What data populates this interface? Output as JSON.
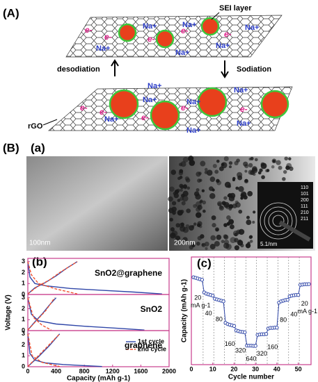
{
  "panel_labels": {
    "A": "(A)",
    "B": "(B)",
    "a": "(a)",
    "b": "(b)",
    "c": "(c)"
  },
  "schematic": {
    "sei": "SEI layer",
    "na": "Na+",
    "e": "e-",
    "desodiation": "desodiation",
    "sodiation": "Sodiation",
    "rgo": "rGO"
  },
  "micrographs": {
    "scale_left": "100nm",
    "scale_right": "200nm",
    "scale_inset": "5.1/nm",
    "rings": [
      "110",
      "101",
      "200",
      "111",
      "210",
      "211"
    ]
  },
  "chart_data": [
    {
      "type": "line",
      "label": "SnO2@graphene",
      "xlim": [
        0,
        2000
      ],
      "ylim": [
        0,
        3.3
      ],
      "yticks": [
        0,
        1,
        2,
        3
      ],
      "series": [
        {
          "color": "#2f46a8",
          "x": [
            0,
            30,
            100,
            250,
            600,
            1000,
            1500,
            1900,
            null,
            0,
            100,
            250,
            400,
            550,
            700
          ],
          "values": [
            3,
            1.6,
            1.0,
            0.8,
            0.55,
            0.4,
            0.22,
            0.05,
            null,
            0.05,
            0.6,
            1.1,
            1.7,
            2.4,
            3
          ]
        },
        {
          "color": "#f05030",
          "dashed": true,
          "x": [
            0,
            50,
            150,
            400,
            700,
            null,
            0,
            150,
            300,
            450,
            600,
            700
          ],
          "values": [
            3,
            1.8,
            1.0,
            0.5,
            0.05,
            null,
            0.05,
            0.8,
            1.3,
            2.0,
            2.6,
            3
          ]
        }
      ]
    },
    {
      "type": "line",
      "label": "SnO2",
      "ylabel": "Voltage (V)",
      "xlim": [
        0,
        2000
      ],
      "ylim": [
        0,
        3.3
      ],
      "yticks": [
        0,
        1,
        2,
        3
      ],
      "series": [
        {
          "color": "#2f46a8",
          "x": [
            0,
            50,
            150,
            400,
            800,
            1300,
            1650,
            null,
            0,
            100,
            200,
            300,
            400
          ],
          "values": [
            3,
            1.5,
            0.9,
            0.6,
            0.4,
            0.2,
            0.05,
            null,
            0.05,
            0.8,
            1.5,
            2.3,
            3
          ]
        },
        {
          "color": "#f05030",
          "dashed": true,
          "x": [
            0,
            80,
            200,
            330,
            null,
            0,
            120,
            250,
            380
          ],
          "values": [
            3,
            1.2,
            0.5,
            0.05,
            null,
            0.05,
            0.9,
            1.8,
            3
          ]
        }
      ]
    },
    {
      "type": "line",
      "label": "graphene",
      "xlabel": "Capacity (mAh g-1)",
      "xlim": [
        0,
        2000
      ],
      "xticks": [
        0,
        400,
        800,
        1200,
        1600,
        2000
      ],
      "ylim": [
        0,
        3.3
      ],
      "yticks": [
        0,
        1,
        2,
        3
      ],
      "series": [
        {
          "name": "1st cycle",
          "color": "#2f46a8",
          "x": [
            0,
            30,
            100,
            250,
            500,
            800,
            1050,
            null,
            0,
            150,
            300,
            450
          ],
          "values": [
            3,
            1.2,
            0.6,
            0.35,
            0.2,
            0.1,
            0.02,
            null,
            0.02,
            0.9,
            1.9,
            3
          ]
        },
        {
          "name": "2nd cycle",
          "color": "#f05030",
          "dashed": true,
          "x": [
            0,
            60,
            200,
            450,
            null,
            0,
            150,
            300,
            450
          ],
          "values": [
            3,
            1.0,
            0.4,
            0.02,
            null,
            0.02,
            1.0,
            2.0,
            3
          ]
        }
      ]
    },
    {
      "type": "rate",
      "xlabel": "Cycle number",
      "ylabel": "Capacity (mAh g-1)",
      "xlim": [
        0,
        56
      ],
      "xticks": [
        0,
        10,
        20,
        30,
        40,
        50
      ],
      "ylim": [
        0,
        850
      ],
      "color": "#2f46a8",
      "x": [
        1,
        2,
        3,
        4,
        5,
        6,
        7,
        8,
        9,
        10,
        11,
        12,
        13,
        14,
        15,
        16,
        17,
        18,
        19,
        20,
        21,
        22,
        23,
        24,
        25,
        26,
        27,
        28,
        29,
        30,
        31,
        32,
        33,
        34,
        35,
        36,
        37,
        38,
        39,
        40,
        41,
        42,
        43,
        44,
        45,
        46,
        47,
        48,
        49,
        50,
        51,
        52,
        53,
        54,
        55
      ],
      "values": [
        690,
        685,
        680,
        675,
        670,
        570,
        560,
        555,
        550,
        545,
        520,
        515,
        510,
        505,
        500,
        330,
        320,
        315,
        310,
        305,
        270,
        265,
        260,
        258,
        255,
        150,
        150,
        150,
        148,
        148,
        235,
        238,
        240,
        240,
        242,
        285,
        290,
        290,
        292,
        292,
        490,
        500,
        505,
        510,
        512,
        540,
        545,
        548,
        550,
        550,
        630,
        632,
        635,
        635,
        636
      ],
      "annotations": [
        "20",
        "40",
        "80",
        "160",
        "320",
        "640",
        "320",
        "160",
        "80",
        "40",
        "20"
      ],
      "annotation_unit": "mA g-1"
    }
  ]
}
